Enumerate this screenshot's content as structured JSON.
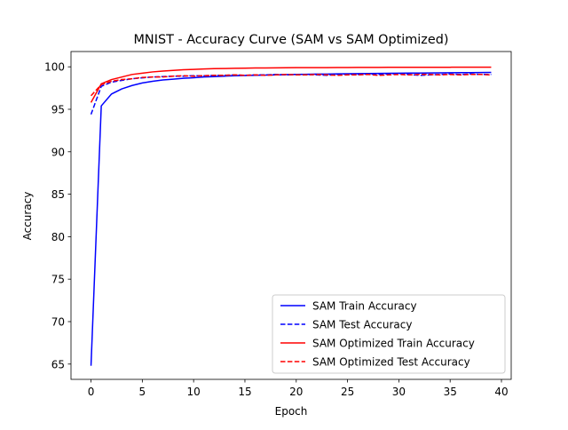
{
  "chart_data": {
    "type": "line",
    "title": "MNIST - Accuracy Curve (SAM vs SAM Optimized)",
    "xlabel": "Epoch",
    "ylabel": "Accuracy",
    "xlim": [
      -1.95,
      40.95
    ],
    "ylim": [
      63.2,
      101.8
    ],
    "xticks": [
      0,
      5,
      10,
      15,
      20,
      25,
      30,
      35,
      40
    ],
    "yticks": [
      65,
      70,
      75,
      80,
      85,
      90,
      95,
      100
    ],
    "grid": false,
    "legend_position": "lower-right",
    "x": [
      0,
      1,
      2,
      3,
      4,
      5,
      6,
      7,
      8,
      9,
      10,
      11,
      12,
      13,
      14,
      15,
      16,
      17,
      18,
      19,
      20,
      21,
      22,
      23,
      24,
      25,
      26,
      27,
      28,
      29,
      30,
      31,
      32,
      33,
      34,
      35,
      36,
      37,
      38,
      39
    ],
    "series": [
      {
        "name": "SAM Train Accuracy",
        "color": "#0000ff",
        "style": "solid",
        "values": [
          64.8,
          95.4,
          96.8,
          97.4,
          97.8,
          98.1,
          98.3,
          98.45,
          98.55,
          98.65,
          98.72,
          98.8,
          98.85,
          98.9,
          98.95,
          98.98,
          99.0,
          99.03,
          99.05,
          99.08,
          99.1,
          99.12,
          99.14,
          99.15,
          99.17,
          99.18,
          99.2,
          99.21,
          99.22,
          99.24,
          99.25,
          99.26,
          99.27,
          99.28,
          99.29,
          99.3,
          99.31,
          99.32,
          99.33,
          99.34
        ]
      },
      {
        "name": "SAM Test Accuracy",
        "color": "#0000ff",
        "style": "dashed",
        "values": [
          94.4,
          97.7,
          98.2,
          98.4,
          98.6,
          98.7,
          98.8,
          98.85,
          98.9,
          98.9,
          98.95,
          98.95,
          99.0,
          99.0,
          99.05,
          99.0,
          99.05,
          99.05,
          99.1,
          99.05,
          99.1,
          99.1,
          99.05,
          99.0,
          99.1,
          99.15,
          99.1,
          99.15,
          99.1,
          99.15,
          99.2,
          99.1,
          99.0,
          99.05,
          99.1,
          99.15,
          99.1,
          99.15,
          99.1,
          99.1
        ]
      },
      {
        "name": "SAM Optimized Train Accuracy",
        "color": "#ff0000",
        "style": "solid",
        "values": [
          95.8,
          98.0,
          98.5,
          98.8,
          99.1,
          99.25,
          99.4,
          99.5,
          99.58,
          99.65,
          99.7,
          99.75,
          99.78,
          99.8,
          99.82,
          99.84,
          99.86,
          99.87,
          99.88,
          99.89,
          99.9,
          99.9,
          99.91,
          99.91,
          99.92,
          99.92,
          99.93,
          99.93,
          99.93,
          99.94,
          99.94,
          99.94,
          99.95,
          99.95,
          99.95,
          99.95,
          99.96,
          99.96,
          99.96,
          99.96
        ]
      },
      {
        "name": "SAM Optimized Test Accuracy",
        "color": "#ff0000",
        "style": "dashed",
        "values": [
          96.6,
          97.9,
          98.3,
          98.5,
          98.6,
          98.75,
          98.8,
          98.8,
          98.9,
          98.95,
          98.9,
          98.95,
          99.0,
          99.0,
          99.05,
          99.0,
          99.05,
          99.0,
          99.05,
          99.1,
          99.05,
          99.05,
          99.1,
          99.05,
          99.0,
          99.05,
          99.05,
          99.1,
          99.0,
          99.05,
          99.1,
          99.05,
          99.1,
          99.1,
          99.05,
          99.1,
          99.05,
          99.1,
          99.1,
          99.05
        ]
      }
    ]
  }
}
